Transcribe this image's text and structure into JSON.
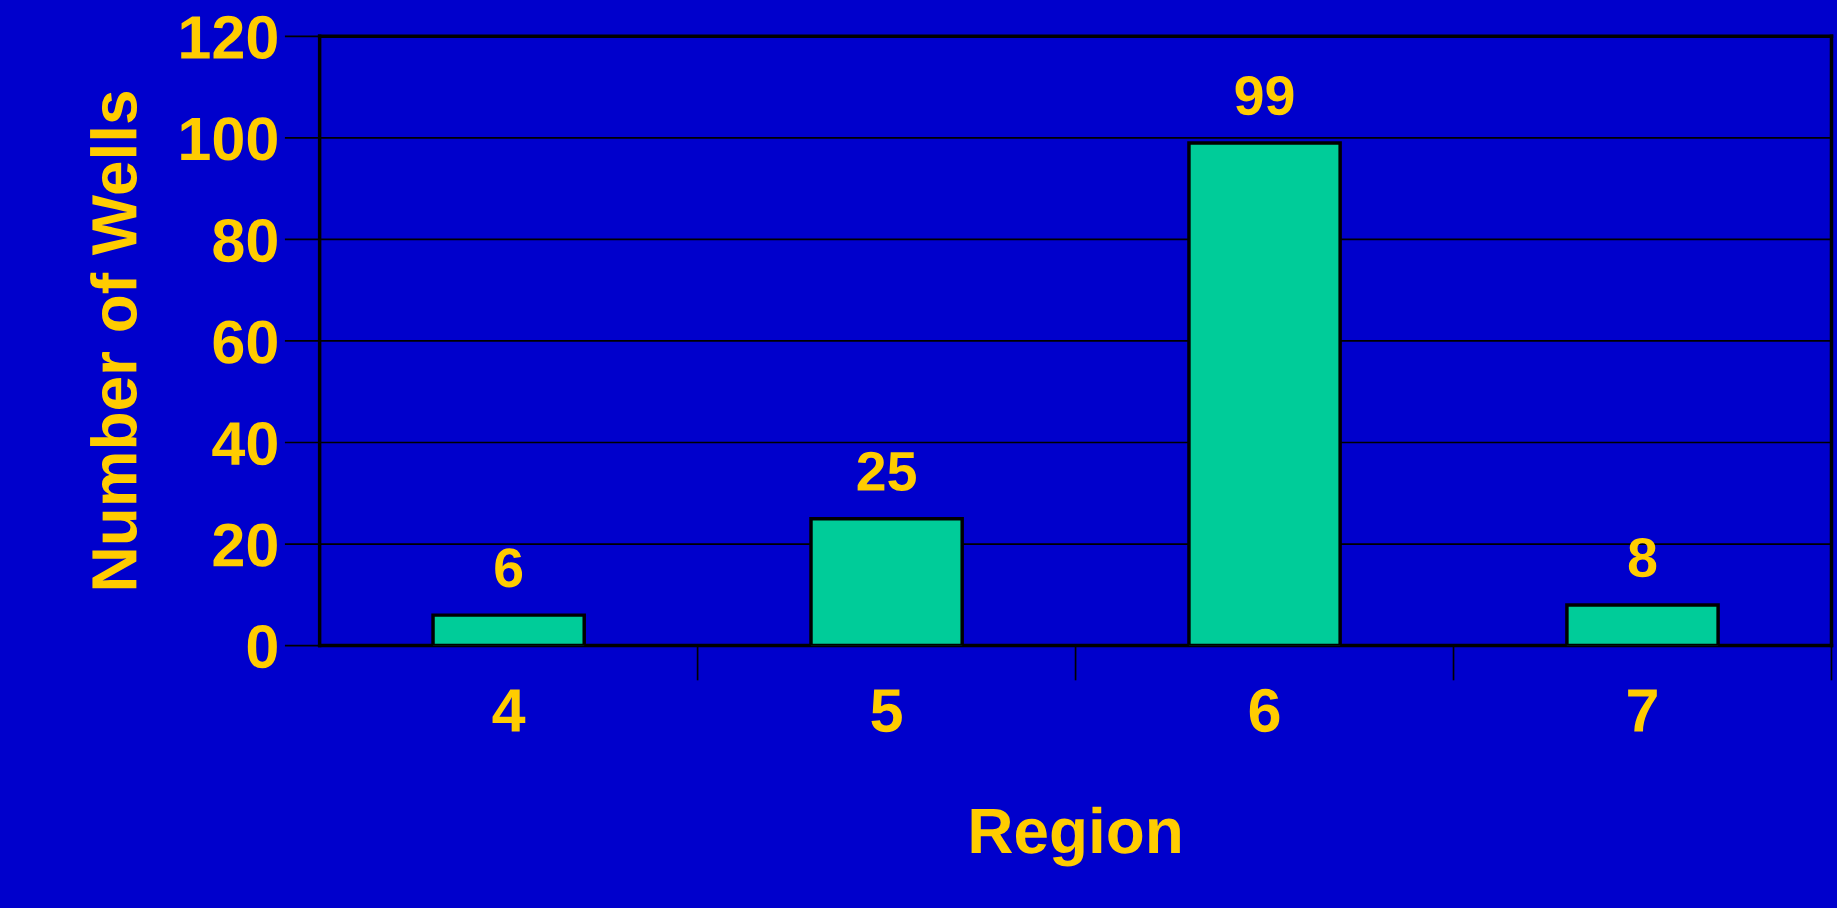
{
  "chart_data": {
    "type": "bar",
    "xlabel": "Region",
    "ylabel": "Number of Wells",
    "categories": [
      "4",
      "5",
      "6",
      "7"
    ],
    "values": [
      6,
      25,
      99,
      8
    ],
    "color": "#00cc99",
    "ylim": [
      0,
      120
    ],
    "yticks": [
      0,
      20,
      40,
      60,
      80,
      100,
      120
    ],
    "grid": "y",
    "data_labels": true
  }
}
